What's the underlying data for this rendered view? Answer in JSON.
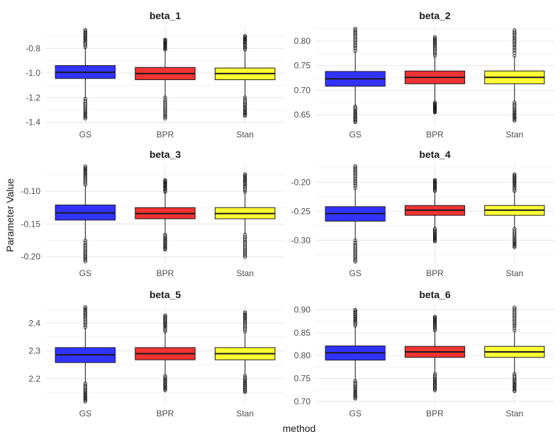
{
  "chart_data": {
    "type": "boxplot",
    "xlabel": "method",
    "ylabel": "Parameter Value",
    "categories": [
      "GS",
      "BPR",
      "Stan"
    ],
    "colors": {
      "GS": "#3333ff",
      "BPR": "#f23333",
      "Stan": "#ffff33"
    },
    "grid": true,
    "legend": "none",
    "panels": [
      {
        "title": "beta_1",
        "ylim": [
          -1.42,
          -0.62
        ],
        "yticks": [
          -1.4,
          -1.2,
          -1.0,
          -0.8
        ],
        "ytick_labels": [
          "-1.4",
          "-1.2",
          "-1.0",
          "-0.8"
        ],
        "boxes": [
          {
            "category": "GS",
            "q1": -1.045,
            "median": -0.995,
            "q3": -0.94,
            "whisker_low": -1.21,
            "whisker_high": -0.79,
            "outlier_low": -1.37,
            "outlier_high": -0.65
          },
          {
            "category": "BPR",
            "q1": -1.055,
            "median": -1.005,
            "q3": -0.955,
            "whisker_low": -1.2,
            "whisker_high": -0.81,
            "outlier_low": -1.37,
            "outlier_high": -0.73
          },
          {
            "category": "Stan",
            "q1": -1.055,
            "median": -1.005,
            "q3": -0.96,
            "whisker_low": -1.2,
            "whisker_high": -0.81,
            "outlier_low": -1.35,
            "outlier_high": -0.7
          }
        ]
      },
      {
        "title": "beta_2",
        "ylim": [
          0.63,
          0.83
        ],
        "yticks": [
          0.65,
          0.7,
          0.75,
          0.8
        ],
        "ytick_labels": [
          "0.65",
          "0.70",
          "0.75",
          "0.80"
        ],
        "boxes": [
          {
            "category": "GS",
            "q1": 0.708,
            "median": 0.723,
            "q3": 0.738,
            "whisker_low": 0.667,
            "whisker_high": 0.78,
            "outlier_low": 0.635,
            "outlier_high": 0.825
          },
          {
            "category": "BPR",
            "q1": 0.713,
            "median": 0.726,
            "q3": 0.739,
            "whisker_low": 0.675,
            "whisker_high": 0.77,
            "outlier_low": 0.655,
            "outlier_high": 0.808
          },
          {
            "category": "Stan",
            "q1": 0.713,
            "median": 0.726,
            "q3": 0.739,
            "whisker_low": 0.675,
            "whisker_high": 0.77,
            "outlier_low": 0.638,
            "outlier_high": 0.822
          }
        ]
      },
      {
        "title": "beta_3",
        "ylim": [
          -0.21,
          -0.06
        ],
        "yticks": [
          -0.2,
          -0.15,
          -0.1
        ],
        "ytick_labels": [
          "-0.20",
          "-0.15",
          "-0.10"
        ],
        "boxes": [
          {
            "category": "GS",
            "q1": -0.144,
            "median": -0.133,
            "q3": -0.121,
            "whisker_low": -0.175,
            "whisker_high": -0.09,
            "outlier_low": -0.207,
            "outlier_high": -0.062
          },
          {
            "category": "BPR",
            "q1": -0.142,
            "median": -0.134,
            "q3": -0.125,
            "whisker_low": -0.166,
            "whisker_high": -0.101,
            "outlier_low": -0.189,
            "outlier_high": -0.083
          },
          {
            "category": "Stan",
            "q1": -0.142,
            "median": -0.134,
            "q3": -0.125,
            "whisker_low": -0.166,
            "whisker_high": -0.101,
            "outlier_low": -0.2,
            "outlier_high": -0.074
          }
        ]
      },
      {
        "title": "beta_4",
        "ylim": [
          -0.34,
          -0.17
        ],
        "yticks": [
          -0.3,
          -0.25,
          -0.2
        ],
        "ytick_labels": [
          "-0.30",
          "-0.25",
          "-0.20"
        ],
        "boxes": [
          {
            "category": "GS",
            "q1": -0.267,
            "median": -0.254,
            "q3": -0.242,
            "whisker_low": -0.3,
            "whisker_high": -0.21,
            "outlier_low": -0.337,
            "outlier_high": -0.172
          },
          {
            "category": "BPR",
            "q1": -0.257,
            "median": -0.248,
            "q3": -0.24,
            "whisker_low": -0.28,
            "whisker_high": -0.215,
            "outlier_low": -0.302,
            "outlier_high": -0.196
          },
          {
            "category": "Stan",
            "q1": -0.257,
            "median": -0.248,
            "q3": -0.24,
            "whisker_low": -0.28,
            "whisker_high": -0.215,
            "outlier_low": -0.312,
            "outlier_high": -0.186
          }
        ]
      },
      {
        "title": "beta_5",
        "ylim": [
          2.11,
          2.465
        ],
        "yticks": [
          2.2,
          2.3,
          2.4
        ],
        "ytick_labels": [
          "2.2",
          "2.3",
          "2.4"
        ],
        "boxes": [
          {
            "category": "GS",
            "q1": 2.258,
            "median": 2.286,
            "q3": 2.312,
            "whisker_low": 2.183,
            "whisker_high": 2.385,
            "outlier_low": 2.118,
            "outlier_high": 2.458
          },
          {
            "category": "BPR",
            "q1": 2.268,
            "median": 2.29,
            "q3": 2.312,
            "whisker_low": 2.21,
            "whisker_high": 2.37,
            "outlier_low": 2.158,
            "outlier_high": 2.428
          },
          {
            "category": "Stan",
            "q1": 2.268,
            "median": 2.29,
            "q3": 2.312,
            "whisker_low": 2.21,
            "whisker_high": 2.37,
            "outlier_low": 2.152,
            "outlier_high": 2.44
          }
        ]
      },
      {
        "title": "beta_6",
        "ylim": [
          0.695,
          0.91
        ],
        "yticks": [
          0.7,
          0.75,
          0.8,
          0.85,
          0.9
        ],
        "ytick_labels": [
          "0.70",
          "0.75",
          "0.80",
          "0.85",
          "0.90"
        ],
        "boxes": [
          {
            "category": "GS",
            "q1": 0.79,
            "median": 0.806,
            "q3": 0.821,
            "whisker_low": 0.745,
            "whisker_high": 0.865,
            "outlier_low": 0.706,
            "outlier_high": 0.9
          },
          {
            "category": "BPR",
            "q1": 0.796,
            "median": 0.808,
            "q3": 0.82,
            "whisker_low": 0.76,
            "whisker_high": 0.855,
            "outlier_low": 0.724,
            "outlier_high": 0.885
          },
          {
            "category": "Stan",
            "q1": 0.796,
            "median": 0.808,
            "q3": 0.82,
            "whisker_low": 0.76,
            "whisker_high": 0.855,
            "outlier_low": 0.722,
            "outlier_high": 0.905
          }
        ]
      }
    ]
  }
}
